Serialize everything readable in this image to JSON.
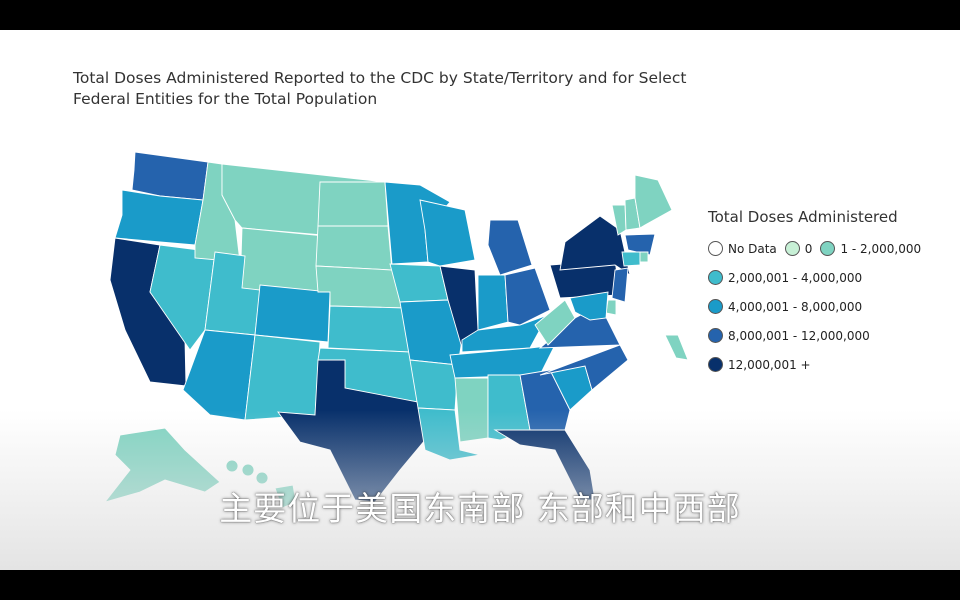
{
  "title": "Total Doses Administered Reported to the CDC by State/Territory and for Select Federal Entities for the Total Population",
  "legend": {
    "title": "Total Doses Administered",
    "items": [
      {
        "label": "No Data",
        "color": "#ffffff"
      },
      {
        "label": "0",
        "color": "#c7f0d6"
      },
      {
        "label": "1 - 2,000,000",
        "color": "#7fd3c1"
      },
      {
        "label": "2,000,001 - 4,000,000",
        "color": "#3fbccc"
      },
      {
        "label": "4,000,001 - 8,000,000",
        "color": "#1a9bc9"
      },
      {
        "label": "8,000,001 - 12,000,000",
        "color": "#2563ad"
      },
      {
        "label": "12,000,001 +",
        "color": "#08306b"
      }
    ]
  },
  "subtitle": "主要位于美国东南部 东部和中西部",
  "map_data": {
    "WA": "8,000,001 - 12,000,000",
    "OR": "4,000,001 - 8,000,000",
    "CA": "12,000,001 +",
    "NV": "2,000,001 - 4,000,000",
    "ID": "1 - 2,000,000",
    "MT": "1 - 2,000,000",
    "WY": "1 - 2,000,000",
    "UT": "2,000,001 - 4,000,000",
    "AZ": "4,000,001 - 8,000,000",
    "CO": "4,000,001 - 8,000,000",
    "NM": "2,000,001 - 4,000,000",
    "ND": "1 - 2,000,000",
    "SD": "1 - 2,000,000",
    "NE": "1 - 2,000,000",
    "KS": "2,000,001 - 4,000,000",
    "OK": "2,000,001 - 4,000,000",
    "TX": "12,000,001 +",
    "MN": "4,000,001 - 8,000,000",
    "IA": "2,000,001 - 4,000,000",
    "MO": "4,000,001 - 8,000,000",
    "AR": "2,000,001 - 4,000,000",
    "LA": "2,000,001 - 4,000,000",
    "WI": "4,000,001 - 8,000,000",
    "IL": "12,000,001 +",
    "MI": "8,000,001 - 12,000,000",
    "IN": "4,000,001 - 8,000,000",
    "OH": "8,000,001 - 12,000,000",
    "KY": "4,000,001 - 8,000,000",
    "TN": "4,000,001 - 8,000,000",
    "MS": "1 - 2,000,000",
    "AL": "2,000,001 - 4,000,000",
    "GA": "8,000,001 - 12,000,000",
    "FL": "12,000,001 +",
    "SC": "4,000,001 - 8,000,000",
    "NC": "8,000,001 - 12,000,000",
    "VA": "8,000,001 - 12,000,000",
    "WV": "1 - 2,000,000",
    "PA": "12,000,001 +",
    "NY": "12,000,001 +",
    "VT": "1 - 2,000,000",
    "NH": "1 - 2,000,000",
    "ME": "1 - 2,000,000",
    "MA": "8,000,001 - 12,000,000",
    "CT": "2,000,001 - 4,000,000",
    "RI": "1 - 2,000,000",
    "NJ": "8,000,001 - 12,000,000",
    "DE": "1 - 2,000,000",
    "MD": "4,000,001 - 8,000,000",
    "AK": "1 - 2,000,000",
    "HI": "1 - 2,000,000",
    "PR": "1 - 2,000,000"
  }
}
